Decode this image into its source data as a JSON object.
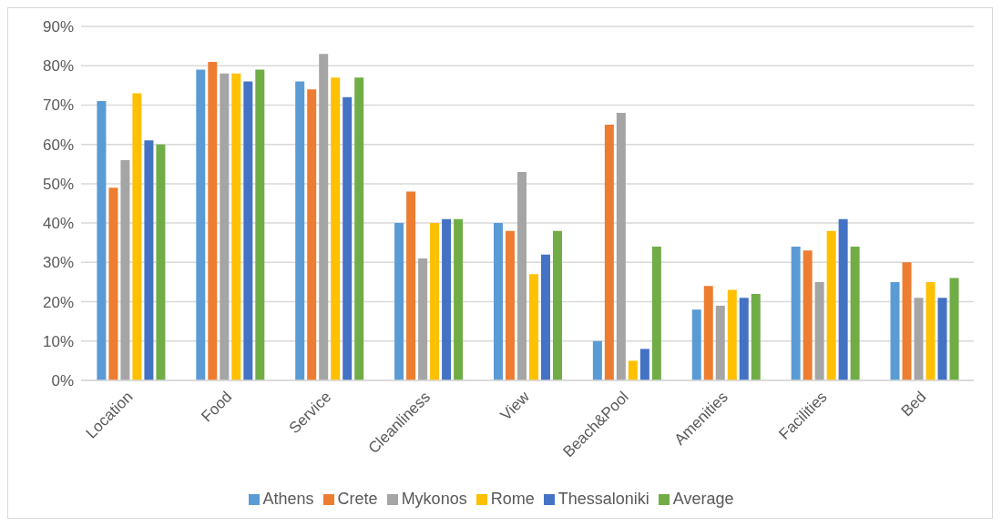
{
  "chart_data": {
    "type": "bar",
    "categories": [
      "Location",
      "Food",
      "Service",
      "Cleanliness",
      "View",
      "Beach&Pool",
      "Amenities",
      "Facilities",
      "Bed"
    ],
    "series": [
      {
        "name": "Athens",
        "color": "#5b9bd5",
        "values": [
          71,
          79,
          76,
          40,
          40,
          10,
          18,
          34,
          25
        ]
      },
      {
        "name": "Crete",
        "color": "#ed7d31",
        "values": [
          49,
          81,
          74,
          48,
          38,
          65,
          24,
          33,
          30
        ]
      },
      {
        "name": "Mykonos",
        "color": "#a5a5a5",
        "values": [
          56,
          78,
          83,
          31,
          53,
          68,
          19,
          25,
          21
        ]
      },
      {
        "name": "Rome",
        "color": "#ffc000",
        "values": [
          73,
          78,
          77,
          40,
          27,
          5,
          23,
          38,
          25
        ]
      },
      {
        "name": "Thessaloniki",
        "color": "#4472c4",
        "values": [
          61,
          76,
          72,
          41,
          32,
          8,
          21,
          41,
          21
        ]
      },
      {
        "name": "Average",
        "color": "#70ad47",
        "values": [
          60,
          79,
          77,
          41,
          38,
          34,
          22,
          34,
          26
        ]
      }
    ],
    "ylim": [
      0,
      90
    ],
    "yticks": [
      {
        "value": 0,
        "label": "0%"
      },
      {
        "value": 10,
        "label": "10%"
      },
      {
        "value": 20,
        "label": "20%"
      },
      {
        "value": 30,
        "label": "30%"
      },
      {
        "value": 40,
        "label": "40%"
      },
      {
        "value": 50,
        "label": "50%"
      },
      {
        "value": 60,
        "label": "60%"
      },
      {
        "value": 70,
        "label": "70%"
      },
      {
        "value": 80,
        "label": "80%"
      },
      {
        "value": 90,
        "label": "90%"
      }
    ],
    "grid": "y",
    "legend": "bottom"
  }
}
